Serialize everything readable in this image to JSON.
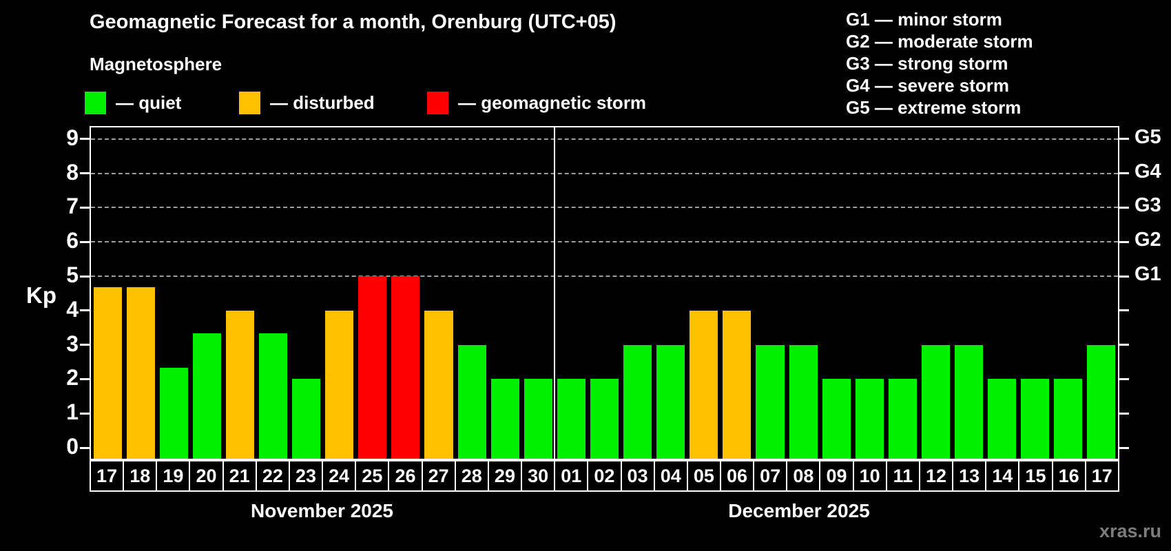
{
  "title": "Geomagnetic Forecast for a month, Orenburg (UTC+05)",
  "subtitle": "Magnetosphere",
  "legend": {
    "items": [
      {
        "status": "quiet",
        "label": "— quiet",
        "color": "#00ef00"
      },
      {
        "status": "disturbed",
        "label": "— disturbed",
        "color": "#ffc000"
      },
      {
        "status": "storm",
        "label": "— geomagnetic storm",
        "color": "#ff0000"
      }
    ]
  },
  "g_legend": {
    "items": [
      {
        "code": "G1",
        "label": "G1 — minor storm"
      },
      {
        "code": "G2",
        "label": "G2 — moderate storm"
      },
      {
        "code": "G3",
        "label": "G3 — strong storm"
      },
      {
        "code": "G4",
        "label": "G4 — severe storm"
      },
      {
        "code": "G5",
        "label": "G5 — extreme storm"
      }
    ]
  },
  "y_axis": {
    "label": "Kp",
    "ticks": [
      0,
      1,
      2,
      3,
      4,
      5,
      6,
      7,
      8,
      9
    ]
  },
  "right_axis": {
    "labels": [
      {
        "label": "G5",
        "kp": 9
      },
      {
        "label": "G4",
        "kp": 8
      },
      {
        "label": "G3",
        "kp": 7
      },
      {
        "label": "G2",
        "kp": 6
      },
      {
        "label": "G1",
        "kp": 5
      }
    ]
  },
  "months": [
    {
      "label": "November 2025",
      "days": 14
    },
    {
      "label": "December 2025",
      "days": 17
    }
  ],
  "watermark": "xras.ru",
  "colors": {
    "quiet": "#00ef00",
    "disturbed": "#ffc000",
    "storm": "#ff0000",
    "background": "#000000",
    "grid": "#9f9f9f",
    "axis": "#ffffff",
    "watermark": "#7d7d7d"
  },
  "chart_data": {
    "type": "bar",
    "title": "Geomagnetic Forecast for a month, Orenburg (UTC+05)",
    "xlabel": "",
    "ylabel": "Kp",
    "ylim": [
      0,
      9
    ],
    "grid_levels": [
      5,
      6,
      7,
      8,
      9
    ],
    "legend_position": "top",
    "bars": [
      {
        "month": "November",
        "day": "17",
        "value": 4.67,
        "status": "disturbed"
      },
      {
        "month": "November",
        "day": "18",
        "value": 4.67,
        "status": "disturbed"
      },
      {
        "month": "November",
        "day": "19",
        "value": 2.33,
        "status": "quiet"
      },
      {
        "month": "November",
        "day": "20",
        "value": 3.33,
        "status": "quiet"
      },
      {
        "month": "November",
        "day": "21",
        "value": 4,
        "status": "disturbed"
      },
      {
        "month": "November",
        "day": "22",
        "value": 3.33,
        "status": "quiet"
      },
      {
        "month": "November",
        "day": "23",
        "value": 2,
        "status": "quiet"
      },
      {
        "month": "November",
        "day": "24",
        "value": 4,
        "status": "disturbed"
      },
      {
        "month": "November",
        "day": "25",
        "value": 5,
        "status": "storm"
      },
      {
        "month": "November",
        "day": "26",
        "value": 5,
        "status": "storm"
      },
      {
        "month": "November",
        "day": "27",
        "value": 4,
        "status": "disturbed"
      },
      {
        "month": "November",
        "day": "28",
        "value": 3,
        "status": "quiet"
      },
      {
        "month": "November",
        "day": "29",
        "value": 2,
        "status": "quiet"
      },
      {
        "month": "November",
        "day": "30",
        "value": 2,
        "status": "quiet"
      },
      {
        "month": "December",
        "day": "01",
        "value": 2,
        "status": "quiet"
      },
      {
        "month": "December",
        "day": "02",
        "value": 2,
        "status": "quiet"
      },
      {
        "month": "December",
        "day": "03",
        "value": 3,
        "status": "quiet"
      },
      {
        "month": "December",
        "day": "04",
        "value": 3,
        "status": "quiet"
      },
      {
        "month": "December",
        "day": "05",
        "value": 4,
        "status": "disturbed"
      },
      {
        "month": "December",
        "day": "06",
        "value": 4,
        "status": "disturbed"
      },
      {
        "month": "December",
        "day": "07",
        "value": 3,
        "status": "quiet"
      },
      {
        "month": "December",
        "day": "08",
        "value": 3,
        "status": "quiet"
      },
      {
        "month": "December",
        "day": "09",
        "value": 2,
        "status": "quiet"
      },
      {
        "month": "December",
        "day": "10",
        "value": 2,
        "status": "quiet"
      },
      {
        "month": "December",
        "day": "11",
        "value": 2,
        "status": "quiet"
      },
      {
        "month": "December",
        "day": "12",
        "value": 3,
        "status": "quiet"
      },
      {
        "month": "December",
        "day": "13",
        "value": 3,
        "status": "quiet"
      },
      {
        "month": "December",
        "day": "14",
        "value": 2,
        "status": "quiet"
      },
      {
        "month": "December",
        "day": "15",
        "value": 2,
        "status": "quiet"
      },
      {
        "month": "December",
        "day": "16",
        "value": 2,
        "status": "quiet"
      },
      {
        "month": "December",
        "day": "17",
        "value": 3,
        "status": "quiet"
      }
    ]
  }
}
